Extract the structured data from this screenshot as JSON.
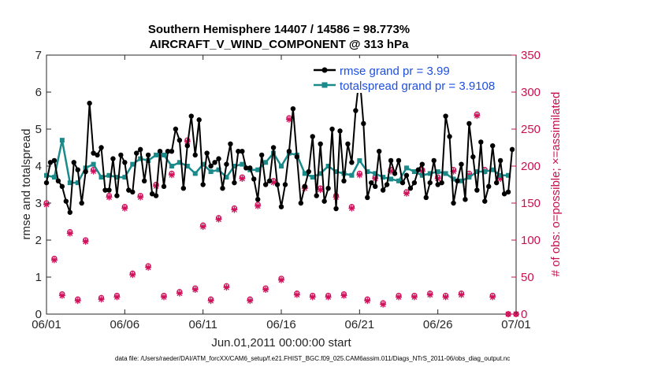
{
  "chart_data": {
    "type": "line",
    "title_line1": "Southern Hemisphere 14407 / 14586 = 98.773%",
    "title_line2": "AIRCRAFT_V_WIND_COMPONENT @ 313 hPa",
    "xlabel": "Jun.01,2011 00:00:00 start",
    "ylabel_left": "rmse and totalspread",
    "ylabel_right": "# of obs: o=possible; ×=assimilated",
    "footer": "data file: /Users/raeder/DAI/ATM_forcXX/CAM6_setup/f.e21.FHIST_BGC.f09_025.CAM6assim.011/Diags_NTrS_2011-06/obs_diag_output.nc",
    "xlim": [
      0,
      30
    ],
    "ylim_left": [
      0,
      7
    ],
    "ylim_right": [
      0,
      350
    ],
    "x_ticks": [
      0,
      5,
      10,
      15,
      20,
      25,
      30
    ],
    "x_tick_labels": [
      "06/01",
      "06/06",
      "06/11",
      "06/16",
      "06/21",
      "06/26",
      "07/01"
    ],
    "y_ticks_left": [
      "0",
      "1",
      "2",
      "3",
      "4",
      "5",
      "6",
      "7"
    ],
    "y_ticks_right": [
      "0",
      "50",
      "100",
      "150",
      "200",
      "250",
      "300",
      "350"
    ],
    "colors": {
      "rmse": "#000000",
      "spread": "#1a8a8a",
      "obs": "#d0105a",
      "legend_text": "#1f4fe0",
      "right_axis": "#c8104f"
    },
    "series": [
      {
        "name": "rmse grand pr = 3.99",
        "axis": "left",
        "x": [
          0,
          0.25,
          0.5,
          0.75,
          1,
          1.25,
          1.5,
          1.75,
          2,
          2.25,
          2.5,
          2.75,
          3,
          3.25,
          3.5,
          3.75,
          4,
          4.25,
          4.5,
          4.75,
          5,
          5.25,
          5.5,
          5.75,
          6,
          6.25,
          6.5,
          6.75,
          7,
          7.25,
          7.5,
          7.75,
          8,
          8.25,
          8.5,
          8.75,
          9,
          9.25,
          9.5,
          9.75,
          10,
          10.25,
          10.5,
          10.75,
          11,
          11.25,
          11.5,
          11.75,
          12,
          12.25,
          12.5,
          12.75,
          13,
          13.25,
          13.5,
          13.75,
          14,
          14.25,
          14.5,
          14.75,
          15,
          15.25,
          15.5,
          15.75,
          16,
          16.25,
          16.5,
          16.75,
          17,
          17.25,
          17.5,
          17.75,
          18,
          18.25,
          18.5,
          18.75,
          19,
          19.25,
          19.5,
          19.75,
          20,
          20.25,
          20.5,
          20.75,
          21,
          21.25,
          21.5,
          21.75,
          22,
          22.25,
          22.5,
          22.75,
          23,
          23.25,
          23.5,
          23.75,
          24,
          24.25,
          24.5,
          24.75,
          25,
          25.25,
          25.5,
          25.75,
          26,
          26.25,
          26.5,
          26.75,
          27,
          27.25,
          27.5,
          27.75,
          28,
          28.25,
          28.5,
          28.75,
          29,
          29.25,
          29.5,
          29.75
        ],
        "values": [
          3.55,
          4.1,
          4.15,
          3.6,
          3.45,
          3.05,
          2.75,
          4.1,
          3.9,
          3.0,
          3.85,
          5.7,
          4.35,
          4.3,
          4.5,
          3.35,
          3.35,
          4.2,
          3.2,
          4.3,
          4.1,
          3.35,
          3.3,
          4.35,
          4.45,
          3.6,
          4.3,
          3.25,
          3.2,
          4.4,
          3.45,
          4.4,
          4.4,
          5.0,
          4.7,
          3.4,
          4.55,
          5.35,
          4.3,
          5.25,
          3.5,
          4.35,
          4.0,
          4.1,
          4.2,
          3.4,
          4.05,
          4.6,
          3.55,
          4.4,
          4.4,
          3.95,
          3.95,
          3.65,
          3.1,
          4.3,
          3.5,
          3.6,
          4.5,
          3.5,
          2.9,
          3.5,
          4.4,
          5.55,
          4.25,
          3.0,
          3.45,
          3.85,
          4.8,
          3.2,
          4.6,
          3.05,
          3.4,
          5.0,
          2.85,
          4.95,
          3.6,
          4.6,
          4.1,
          5.5,
          6.45,
          5.15,
          3.15,
          3.55,
          3.45,
          4.4,
          3.35,
          3.5,
          4.15,
          3.8,
          4.15,
          3.55,
          3.75,
          3.4,
          3.55,
          3.9,
          4.05,
          3.15,
          3.55,
          4.15,
          3.5,
          3.55,
          5.35,
          4.8,
          3.0,
          3.6,
          4.05,
          3.1,
          5.15,
          4.25,
          3.35,
          4.65,
          3.05,
          3.45,
          4.55,
          3.55,
          4.15,
          3.25,
          3.3,
          4.45
        ],
        "note": "rmse trace values"
      },
      {
        "name": "totalspread grand pr = 3.9108",
        "axis": "left",
        "x": [
          0,
          0.5,
          1,
          1.5,
          2,
          2.5,
          3,
          3.5,
          4,
          4.5,
          5,
          5.5,
          6,
          6.5,
          7,
          7.5,
          8,
          8.5,
          9,
          9.5,
          10,
          10.5,
          11,
          11.5,
          12,
          12.5,
          13,
          13.5,
          14,
          14.5,
          15,
          15.5,
          16,
          16.5,
          17,
          17.5,
          18,
          18.5,
          19,
          19.5,
          20,
          20.5,
          21,
          21.5,
          22,
          22.5,
          23,
          23.5,
          24,
          24.5,
          25,
          25.5,
          26,
          26.5,
          27,
          27.5,
          28,
          28.5,
          29,
          29.5
        ],
        "values": [
          3.75,
          3.7,
          4.7,
          3.55,
          3.55,
          3.95,
          4.05,
          3.7,
          3.75,
          3.7,
          3.7,
          4.05,
          4.2,
          4.15,
          4.3,
          4.3,
          4.0,
          4.1,
          4.0,
          3.8,
          4.05,
          3.85,
          3.9,
          3.7,
          4.0,
          4.05,
          3.9,
          3.9,
          4.1,
          4.35,
          4.0,
          4.35,
          4.3,
          3.8,
          3.7,
          3.8,
          4.0,
          3.85,
          3.8,
          3.75,
          4.15,
          3.85,
          3.8,
          3.7,
          3.65,
          3.6,
          3.95,
          3.85,
          3.75,
          3.8,
          3.85,
          3.8,
          3.65,
          3.6,
          3.7,
          3.85,
          3.85,
          3.9,
          3.75,
          3.75
        ],
        "note": "spread trace values"
      }
    ],
    "obs_counts": {
      "axis": "right",
      "x": [
        0,
        0.5,
        1,
        1.5,
        2,
        2.5,
        3,
        3.5,
        4,
        4.5,
        5,
        5.5,
        6,
        6.5,
        7,
        7.5,
        8,
        8.5,
        9,
        9.5,
        10,
        10.5,
        11,
        11.5,
        12,
        12.5,
        13,
        13.5,
        14,
        14.5,
        15,
        15.5,
        16,
        16.5,
        17,
        17.5,
        18,
        18.5,
        19,
        19.5,
        20,
        20.5,
        21,
        21.5,
        22,
        22.5,
        23,
        23.5,
        24,
        24.5,
        25,
        25.5,
        26,
        26.5,
        27,
        27.5,
        28,
        28.5,
        29,
        29.5,
        30
      ],
      "possible": [
        150,
        75,
        27,
        111,
        20,
        100,
        195,
        22,
        160,
        25,
        145,
        55,
        160,
        65,
        175,
        25,
        190,
        30,
        235,
        35,
        120,
        20,
        130,
        38,
        143,
        185,
        20,
        148,
        35,
        180,
        48,
        265,
        28,
        172,
        25,
        170,
        25,
        160,
        27,
        145,
        190,
        20,
        185,
        15,
        195,
        25,
        165,
        25,
        195,
        28,
        185,
        25,
        195,
        28,
        190,
        270,
        195,
        25,
        185,
        0,
        0
      ],
      "assimilated": [
        148,
        73,
        25,
        109,
        18,
        98,
        193,
        20,
        158,
        23,
        143,
        53,
        158,
        63,
        173,
        23,
        188,
        28,
        233,
        33,
        118,
        18,
        128,
        36,
        141,
        183,
        18,
        146,
        33,
        178,
        46,
        263,
        26,
        170,
        23,
        168,
        23,
        158,
        25,
        143,
        188,
        18,
        183,
        13,
        193,
        23,
        163,
        23,
        193,
        26,
        183,
        23,
        193,
        26,
        188,
        268,
        193,
        23,
        183,
        0,
        0
      ]
    }
  }
}
